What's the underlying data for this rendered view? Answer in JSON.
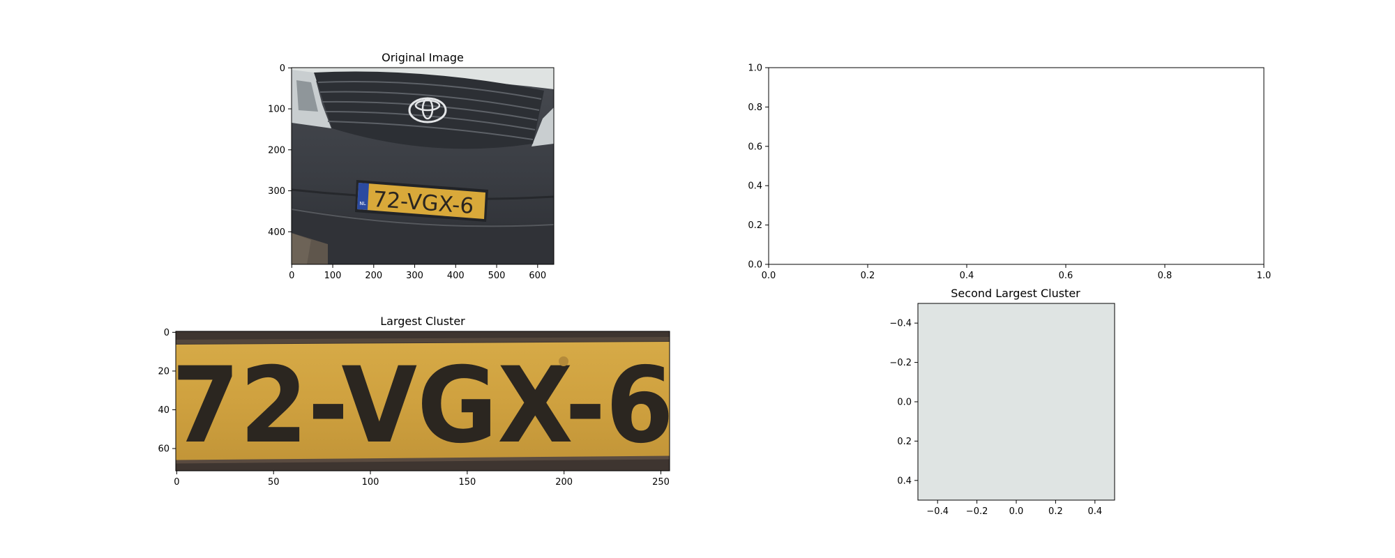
{
  "figure": {
    "background": "#ffffff"
  },
  "chart_data": [
    {
      "id": "original",
      "type": "image",
      "title": "Original Image",
      "image_width": 640,
      "image_height": 480,
      "xlim": [
        -0.5,
        639.5
      ],
      "ylim": [
        479.5,
        -0.5
      ],
      "xticks": [
        0,
        100,
        200,
        300,
        400,
        500,
        600
      ],
      "yticks": [
        0,
        100,
        200,
        300,
        400
      ],
      "plate_text": "72-VGX-6",
      "plate_country": "NL",
      "brand_logo": "toyota-logo",
      "colors": {
        "body": "#3b3e44",
        "grille": "#2a2d32",
        "plate": "#d9a93a",
        "euro_band": "#2b4aa0",
        "sky": "#dfe3e2",
        "ground": "#5a524a"
      }
    },
    {
      "id": "empty",
      "type": "empty",
      "title": "",
      "xlim": [
        0.0,
        1.0
      ],
      "ylim": [
        0.0,
        1.0
      ],
      "xticks": [
        0.0,
        0.2,
        0.4,
        0.6,
        0.8,
        1.0
      ],
      "yticks": [
        0.0,
        0.2,
        0.4,
        0.6,
        0.8,
        1.0
      ],
      "grid": false
    },
    {
      "id": "largest",
      "type": "image",
      "title": "Largest Cluster",
      "image_width": 255,
      "image_height": 72,
      "xlim": [
        -0.5,
        254.5
      ],
      "ylim": [
        71.5,
        -0.5
      ],
      "xticks": [
        0,
        50,
        100,
        150,
        200,
        250
      ],
      "yticks": [
        0,
        20,
        40,
        60
      ],
      "plate_text": "72-VGX-6",
      "colors": {
        "plate": "#cfa13f",
        "border": "#3e3530",
        "char": "#2b2620"
      }
    },
    {
      "id": "second",
      "type": "image",
      "title": "Second Largest Cluster",
      "image_width": 1,
      "image_height": 1,
      "xlim": [
        -0.5,
        0.5
      ],
      "ylim": [
        0.5,
        -0.5
      ],
      "xticks": [
        -0.4,
        -0.2,
        0.0,
        0.2,
        0.4
      ],
      "yticks": [
        -0.4,
        -0.2,
        0.0,
        0.2,
        0.4
      ],
      "fill_color": "#dfe4e3"
    }
  ]
}
